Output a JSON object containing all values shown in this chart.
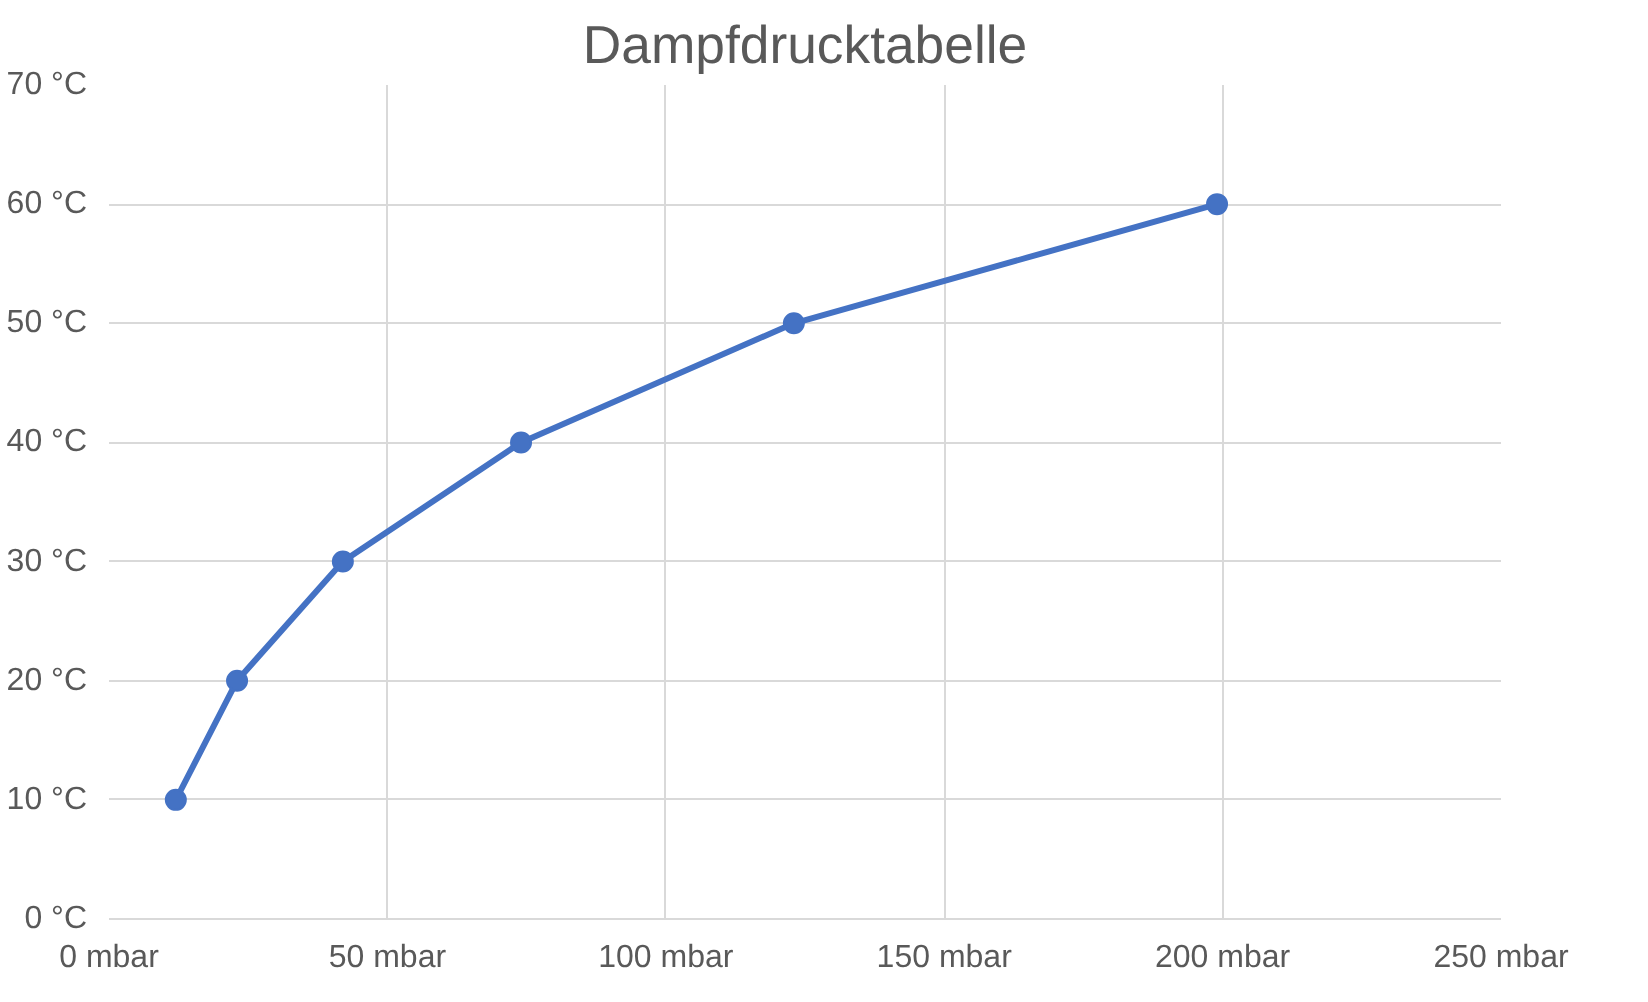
{
  "chart_data": {
    "type": "line",
    "title": "Dampfdrucktabelle",
    "x": [
      12,
      23,
      42,
      74,
      123,
      199
    ],
    "series": [
      {
        "color": "#4472c4",
        "values": [
          10,
          20,
          30,
          40,
          50,
          60
        ]
      }
    ],
    "xlim": [
      0,
      250
    ],
    "ylim": [
      0,
      70
    ],
    "xticks": [
      {
        "value": 0,
        "label": "0 mbar"
      },
      {
        "value": 50,
        "label": "50 mbar"
      },
      {
        "value": 100,
        "label": "100 mbar"
      },
      {
        "value": 150,
        "label": "150 mbar"
      },
      {
        "value": 200,
        "label": "200 mbar"
      },
      {
        "value": 250,
        "label": "250 mbar"
      }
    ],
    "yticks": [
      {
        "value": 0,
        "label": "0 °C"
      },
      {
        "value": 10,
        "label": "10 °C"
      },
      {
        "value": 20,
        "label": "20 °C"
      },
      {
        "value": 30,
        "label": "30 °C"
      },
      {
        "value": 40,
        "label": "40 °C"
      },
      {
        "value": 50,
        "label": "50 °C"
      },
      {
        "value": 60,
        "label": "60 °C"
      },
      {
        "value": 70,
        "label": "70 °C"
      }
    ],
    "grid": true,
    "marker": "circle",
    "line_style": "solid"
  }
}
